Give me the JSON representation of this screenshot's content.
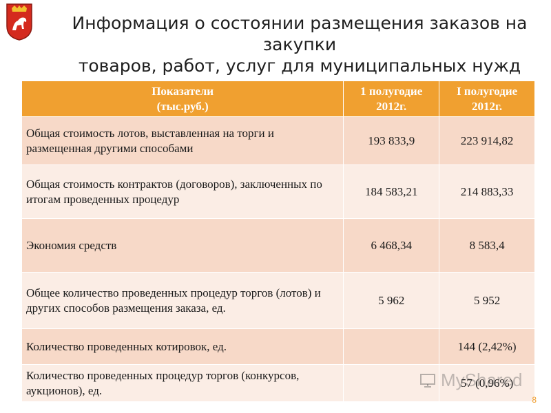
{
  "title": {
    "line1": "Информация о состоянии размещения заказов на закупки",
    "line2": "товаров, работ, услуг для муниципальных нужд"
  },
  "emblem": {
    "icon": "city-coat-of-arms-icon",
    "color": "#d42a1e"
  },
  "table": {
    "headers": [
      "Показатели (тыс.руб.)",
      "1 полугодие 2012г.",
      "I полугодие 2012г."
    ],
    "header_lines": [
      [
        "Показатели",
        "(тыс.руб.)"
      ],
      [
        "1 полугодие",
        "2012г."
      ],
      [
        "I полугодие",
        "2012г."
      ]
    ],
    "rows": [
      [
        "Общая стоимость лотов, выставленная на торги и размещенная другими способами",
        "193 833,9",
        "223 914,82"
      ],
      [
        "Общая стоимость контрактов (договоров), заключенных по итогам проведенных процедур",
        "184 583,21",
        "214 883,33"
      ],
      [
        "Экономия средств",
        "6 468,34",
        "8 583,4"
      ],
      [
        "Общее количество проведенных процедур торгов (лотов) и других способов размещения заказа, ед.",
        "5 962",
        "5 952"
      ],
      [
        "Количество проведенных котировок, ед.",
        "",
        "144 (2,42%)"
      ],
      [
        "Количество проведенных процедур торгов (конкурсов, аукционов), ед.",
        "",
        "57 (0,96%)"
      ]
    ]
  },
  "colors": {
    "header_bg": "#f0a030",
    "row_dark": "#f7d9c8",
    "row_light": "#fbede5"
  },
  "slide_number": "8",
  "watermark": "MyShared"
}
